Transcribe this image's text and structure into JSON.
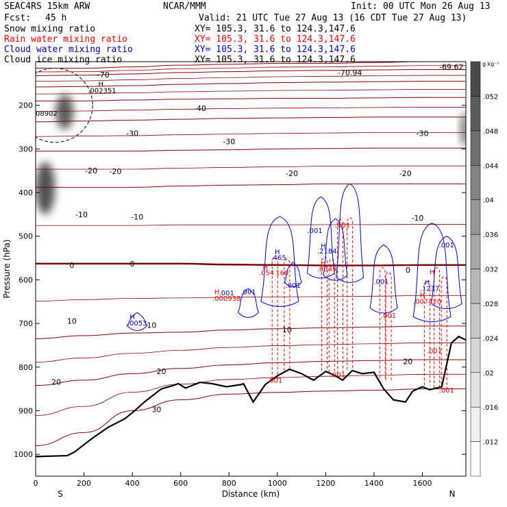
{
  "header": {
    "model": "SEAC4RS 15km ARW",
    "center": "NCAR/MMM",
    "init": "Init: 00 UTC Mon 26 Aug 13",
    "fcst_label": "Fcst:",
    "fcst_value": "45 h",
    "valid": "Valid: 21 UTC Tue 27 Aug 13 (16 CDT Tue 27 Aug 13)",
    "fields": [
      {
        "name": "Snow mixing ratio",
        "xy": "XY= 105.3, 31.6 to 124.3,147.6",
        "color": "#000000"
      },
      {
        "name": "Rain water mixing ratio",
        "xy": "XY= 105.3, 31.6 to 124.3,147.6",
        "color": "#ff0000"
      },
      {
        "name": "Cloud water mixing ratio",
        "xy": "XY= 105.3, 31.6 to 124.3,147.6",
        "color": "#0000cc"
      },
      {
        "name": "Cloud ice mixing ratio",
        "xy": "XY= 105.3, 31.6 to 124.3,147.6",
        "color": "#000000"
      }
    ]
  },
  "chart_data": {
    "type": "cross-section contour",
    "xlabel": "Distance (km)",
    "ylabel": "Pressure (hPa)",
    "xlim": [
      0,
      1780
    ],
    "ylim": [
      1050,
      100
    ],
    "x_ticks": [
      0,
      200,
      400,
      600,
      800,
      1000,
      1200,
      1400,
      1600
    ],
    "y_ticks": [
      1000,
      900,
      800,
      700,
      600,
      500,
      400,
      300,
      200
    ],
    "x_end_labels": {
      "left": "S",
      "right": "N"
    },
    "temperature_contours": [
      {
        "value": -70,
        "p": [
          115,
          115,
          112,
          108,
          106,
          104,
          104,
          102,
          100
        ]
      },
      {
        "value": -60,
        "p": [
          132,
          131,
          128,
          125,
          123,
          121,
          120,
          119,
          118
        ]
      },
      {
        "value": -50,
        "p": [
          158,
          157,
          155,
          152,
          150,
          148,
          147,
          146,
          145
        ]
      },
      {
        "value": -40,
        "p": [
          190,
          190,
          188,
          186,
          185,
          184,
          184,
          183,
          182
        ]
      },
      {
        "value": -30,
        "p": [
          238,
          236,
          234,
          232,
          230,
          229,
          228,
          227,
          227
        ]
      },
      {
        "value": -20,
        "p": [
          305,
          305,
          305,
          303,
          302,
          300,
          299,
          298,
          298
        ]
      },
      {
        "value": -10,
        "p": [
          388,
          388,
          388,
          385,
          383,
          382,
          380,
          380,
          380
        ]
      },
      {
        "value": 0,
        "p": [
          563,
          563,
          563,
          563,
          565,
          566,
          567,
          567,
          566
        ]
      },
      {
        "value": 10,
        "p": [
          735,
          728,
          722,
          720,
          715,
          712,
          710,
          708,
          706
        ]
      },
      {
        "value": 20,
        "p": [
          842,
          830,
          815,
          803,
          795,
          790,
          787,
          785,
          783
        ]
      },
      {
        "value": 30,
        "p": [
          980,
          950,
          900,
          875,
          862,
          858,
          855,
          853,
          850
        ]
      }
    ],
    "contour_x": [
      0,
      200,
      400,
      600,
      800,
      1000,
      1200,
      1400,
      1600
    ],
    "contour_labels": [
      {
        "text": "-70",
        "x": 280,
        "p": 130
      },
      {
        "text": "-69.62",
        "x": 1720,
        "p": 112
      },
      {
        "text": "-70.94",
        "x": 1300,
        "p": 125
      },
      {
        "text": "-40",
        "x": 680,
        "p": 207
      },
      {
        "text": "-30",
        "x": 400,
        "p": 264
      },
      {
        "text": "-30",
        "x": 800,
        "p": 283
      },
      {
        "text": "-30",
        "x": 1600,
        "p": 264
      },
      {
        "text": "-20",
        "x": 230,
        "p": 350
      },
      {
        "text": "-20",
        "x": 330,
        "p": 351
      },
      {
        "text": "-20",
        "x": 1060,
        "p": 356
      },
      {
        "text": "-20",
        "x": 1530,
        "p": 356
      },
      {
        "text": "-10",
        "x": 190,
        "p": 450
      },
      {
        "text": "-10",
        "x": 420,
        "p": 456
      },
      {
        "text": "-10",
        "x": 1580,
        "p": 458
      },
      {
        "text": "0",
        "x": 150,
        "p": 566
      },
      {
        "text": "0",
        "x": 400,
        "p": 563
      },
      {
        "text": "0",
        "x": 1540,
        "p": 577
      },
      {
        "text": "10",
        "x": 150,
        "p": 694
      },
      {
        "text": "10",
        "x": 480,
        "p": 704
      },
      {
        "text": "10",
        "x": 1040,
        "p": 714
      },
      {
        "text": "20",
        "x": 520,
        "p": 810
      },
      {
        "text": "20",
        "x": 85,
        "p": 834
      },
      {
        "text": "20",
        "x": 1540,
        "p": 787
      },
      {
        "text": "30",
        "x": 500,
        "p": 897
      }
    ],
    "terrain_p": [
      [
        0,
        1005
      ],
      [
        130,
        1003
      ],
      [
        160,
        995
      ],
      [
        230,
        965
      ],
      [
        300,
        938
      ],
      [
        370,
        918
      ],
      [
        410,
        900
      ],
      [
        450,
        880
      ],
      [
        520,
        850
      ],
      [
        570,
        842
      ],
      [
        590,
        838
      ],
      [
        620,
        848
      ],
      [
        680,
        835
      ],
      [
        730,
        838
      ],
      [
        790,
        845
      ],
      [
        850,
        840
      ],
      [
        860,
        838
      ],
      [
        900,
        880
      ],
      [
        950,
        840
      ],
      [
        1000,
        820
      ],
      [
        1050,
        805
      ],
      [
        1100,
        815
      ],
      [
        1150,
        830
      ],
      [
        1200,
        810
      ],
      [
        1240,
        820
      ],
      [
        1270,
        830
      ],
      [
        1310,
        808
      ],
      [
        1350,
        815
      ],
      [
        1400,
        812
      ],
      [
        1440,
        850
      ],
      [
        1480,
        875
      ],
      [
        1530,
        880
      ],
      [
        1560,
        855
      ],
      [
        1600,
        845
      ],
      [
        1630,
        852
      ],
      [
        1680,
        845
      ],
      [
        1720,
        745
      ],
      [
        1750,
        730
      ],
      [
        1780,
        738
      ]
    ],
    "annotations": [
      {
        "text": "H",
        "x": 270,
        "p": 150,
        "color": "black"
      },
      {
        "text": ".002351",
        "x": 275,
        "p": 165,
        "color": "black"
      },
      {
        "text": "08902",
        "x": 45,
        "p": 218,
        "color": "black"
      },
      {
        "text": ".001",
        "x": 1270,
        "p": 474,
        "color": "red"
      },
      {
        "text": ".001",
        "x": 1155,
        "p": 486,
        "color": "blue"
      },
      {
        "text": ".001",
        "x": 1700,
        "p": 519,
        "color": "blue"
      },
      {
        "text": "H",
        "x": 1190,
        "p": 522,
        "color": "blue"
      },
      {
        "text": ".2184",
        "x": 1205,
        "p": 533,
        "color": "blue"
      },
      {
        "text": "H",
        "x": 1000,
        "p": 535,
        "color": "blue"
      },
      {
        "text": ".465",
        "x": 1005,
        "p": 548,
        "color": "blue"
      },
      {
        "text": "H",
        "x": 1190,
        "p": 561,
        "color": "red"
      },
      {
        "text": ".0349",
        "x": 1205,
        "p": 574,
        "color": "red"
      },
      {
        "text": "H",
        "x": 950,
        "p": 570,
        "color": "red"
      },
      {
        "text": ".054",
        "x": 955,
        "p": 583,
        "color": "red"
      },
      {
        "text": "160",
        "x": 1020,
        "p": 583,
        "color": "red"
      },
      {
        "text": "H",
        "x": 1640,
        "p": 581,
        "color": "red"
      },
      {
        "text": ".001",
        "x": 1430,
        "p": 603,
        "color": "blue"
      },
      {
        "text": "H",
        "x": 1620,
        "p": 605,
        "color": "blue"
      },
      {
        "text": ".1237",
        "x": 1630,
        "p": 619,
        "color": "blue"
      },
      {
        "text": ".001",
        "x": 1065,
        "p": 612,
        "color": "blue"
      },
      {
        "text": "H",
        "x": 750,
        "p": 627,
        "color": "red"
      },
      {
        "text": ".001",
        "x": 790,
        "p": 629,
        "color": "blue"
      },
      {
        "text": ".001",
        "x": 880,
        "p": 627,
        "color": "blue"
      },
      {
        "text": ".000938",
        "x": 790,
        "p": 642,
        "color": "red"
      },
      {
        "text": "H",
        "x": 1600,
        "p": 634,
        "color": "red"
      },
      {
        "text": ".007420",
        "x": 1620,
        "p": 649,
        "color": "red"
      },
      {
        "text": ".001",
        "x": 1460,
        "p": 681,
        "color": "red"
      },
      {
        "text": "H",
        "x": 400,
        "p": 683,
        "color": "blue"
      },
      {
        "text": ".0053",
        "x": 420,
        "p": 698,
        "color": "blue"
      },
      {
        "text": ".001",
        "x": 1650,
        "p": 762,
        "color": "red"
      },
      {
        "text": ".001",
        "x": 1250,
        "p": 817,
        "color": "red"
      },
      {
        "text": ".001",
        "x": 990,
        "p": 829,
        "color": "red"
      },
      {
        "text": ".001",
        "x": 1700,
        "p": 852,
        "color": "red"
      }
    ],
    "rain_columns": [
      {
        "x": 990,
        "top": 555,
        "bottom": 828
      },
      {
        "x": 1040,
        "top": 560,
        "bottom": 808
      },
      {
        "x": 1195,
        "top": 555,
        "bottom": 808
      },
      {
        "x": 1225,
        "top": 560,
        "bottom": 812
      },
      {
        "x": 1260,
        "top": 470,
        "bottom": 815
      },
      {
        "x": 1300,
        "top": 465,
        "bottom": 806
      },
      {
        "x": 1435,
        "top": 580,
        "bottom": 825
      },
      {
        "x": 1460,
        "top": 590,
        "bottom": 830
      },
      {
        "x": 1620,
        "top": 610,
        "bottom": 842
      },
      {
        "x": 1660,
        "top": 580,
        "bottom": 848
      },
      {
        "x": 1690,
        "top": 600,
        "bottom": 850
      }
    ],
    "cloud_water": [
      {
        "x": 1010,
        "top": 455,
        "bottom": 665,
        "w": 55
      },
      {
        "x": 1065,
        "top": 560,
        "bottom": 620,
        "w": 25
      },
      {
        "x": 880,
        "top": 620,
        "bottom": 690,
        "w": 30
      },
      {
        "x": 1180,
        "top": 410,
        "bottom": 600,
        "w": 40
      },
      {
        "x": 1240,
        "top": 460,
        "bottom": 605,
        "w": 35
      },
      {
        "x": 1300,
        "top": 380,
        "bottom": 610,
        "w": 40
      },
      {
        "x": 1440,
        "top": 520,
        "bottom": 680,
        "w": 40
      },
      {
        "x": 1640,
        "top": 470,
        "bottom": 700,
        "w": 55
      },
      {
        "x": 1700,
        "top": 500,
        "bottom": 670,
        "w": 45
      },
      {
        "x": 420,
        "top": 675,
        "bottom": 720,
        "w": 30
      }
    ],
    "snow_blobs": [
      {
        "x": 40,
        "p": 390,
        "rx": 14,
        "rp": 60,
        "op": 0.85
      },
      {
        "x": 120,
        "p": 215,
        "rx": 13,
        "rp": 40,
        "op": 0.8
      },
      {
        "x": 1775,
        "p": 255,
        "rx": 6,
        "rp": 40,
        "op": 0.7
      }
    ],
    "ice_outline": {
      "x": 80,
      "p": 200,
      "rx": 55,
      "rp": 85
    },
    "colorbar": {
      "unit": "g kg⁻¹",
      "labels": [
        ".012",
        ".016",
        ".02",
        ".024",
        ".028",
        ".032",
        ".036",
        ".04",
        ".044",
        ".048",
        ".052"
      ],
      "shades": [
        "#ffffff",
        "#f0f0f0",
        "#e3e3e3",
        "#d6d6d6",
        "#c8c8c8",
        "#b9b9b9",
        "#a8a8a8",
        "#969696",
        "#838383",
        "#6f6f6f",
        "#5c5c5c",
        "#4a4a4a"
      ]
    },
    "colors": {
      "temp_contour": "#8b0000",
      "zero_contour": "#7a0000",
      "terrain": "#000000",
      "rain": "#ff0000",
      "cloud_water": "#0000cc"
    }
  }
}
